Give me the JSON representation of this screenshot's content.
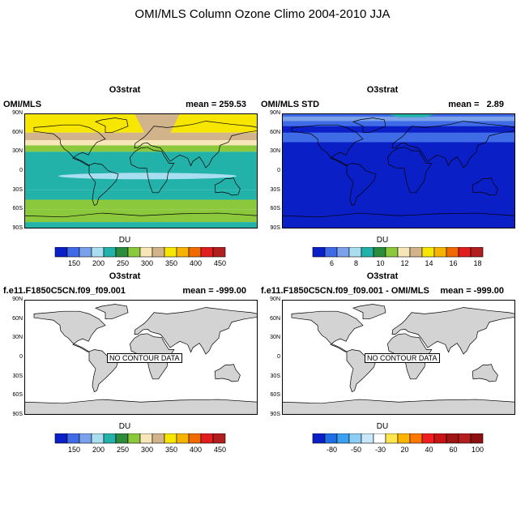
{
  "figure": {
    "title": "OMI/MLS Column Ozone Climo 2004-2010 JJA"
  },
  "lat_labels": [
    "90N",
    "60N",
    "30N",
    "0",
    "30S",
    "60S",
    "90S"
  ],
  "panels": [
    {
      "top": "O3strat",
      "left": "OMI/MLS",
      "mean": "mean = 259.53",
      "units": "DU",
      "ticks": [
        "150",
        "200",
        "250",
        "300",
        "350",
        "400",
        "450"
      ],
      "colors": [
        "#0a1fc5",
        "#3f6be6",
        "#7aa1ea",
        "#a8def0",
        "#22b2aa",
        "#2c8c3c",
        "#8cc83c",
        "#f6e6b8",
        "#d2b48c",
        "#f6e600",
        "#f6b400",
        "#f06a00",
        "#e01e1e",
        "#b01e1e"
      ],
      "no_data": ""
    },
    {
      "top": "O3strat",
      "left": "OMI/MLS STD",
      "mean": "mean =   2.89",
      "units": "DU",
      "ticks": [
        "6",
        "8",
        "10",
        "12",
        "14",
        "16",
        "18"
      ],
      "colors": [
        "#0a1fc5",
        "#3f6be6",
        "#7aa1ea",
        "#a8def0",
        "#22b2aa",
        "#2c8c3c",
        "#8cc83c",
        "#f6e6b8",
        "#d2b48c",
        "#f6e600",
        "#f6b400",
        "#f06a00",
        "#e01e1e",
        "#b01e1e"
      ],
      "no_data": ""
    },
    {
      "top": "O3strat",
      "left": "f.e11.F1850C5CN.f09_f09.001",
      "mean": "mean = -999.00",
      "units": "DU",
      "ticks": [
        "150",
        "200",
        "250",
        "300",
        "350",
        "400",
        "450"
      ],
      "colors": [
        "#0a1fc5",
        "#3f6be6",
        "#7aa1ea",
        "#a8def0",
        "#22b2aa",
        "#2c8c3c",
        "#8cc83c",
        "#f6e6b8",
        "#d2b48c",
        "#f6e600",
        "#f6b400",
        "#f06a00",
        "#e01e1e",
        "#b01e1e"
      ],
      "no_data": "NO CONTOUR DATA"
    },
    {
      "top": "O3strat",
      "left": "f.e11.F1850C5CN.f09_f09.001 - OMI/MLS",
      "mean": "mean = -999.00",
      "units": "DU",
      "ticks": [
        "-80",
        "-50",
        "-30",
        "20",
        "40",
        "60",
        "100"
      ],
      "colors": [
        "#0a1fc5",
        "#1e6ee6",
        "#3ca0f0",
        "#8ccdf6",
        "#c8e8fa",
        "#ffffff",
        "#ffe650",
        "#ffb400",
        "#ff7800",
        "#f01e1e",
        "#c81414",
        "#a01414",
        "#b41e1e",
        "#8c1010"
      ],
      "no_data": "NO CONTOUR DATA"
    }
  ]
}
